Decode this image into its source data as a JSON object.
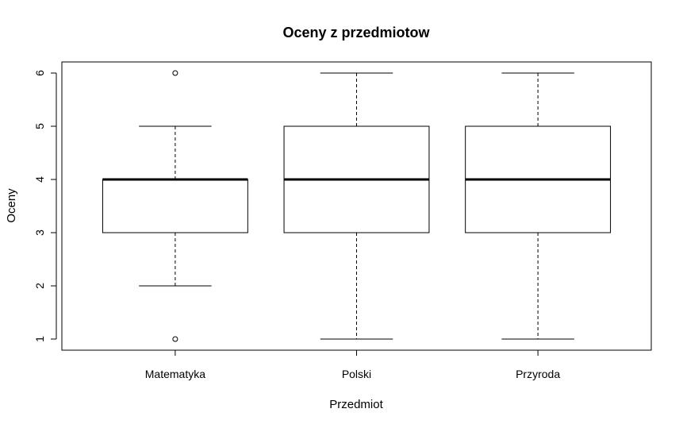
{
  "chart_data": {
    "type": "boxplot",
    "title": "Oceny z przedmiotow",
    "xlabel": "Przedmiot",
    "ylabel": "Oceny",
    "ylim": [
      0.8,
      6.2
    ],
    "yticks": [
      "1",
      "2",
      "3",
      "4",
      "5",
      "6"
    ],
    "grid": false,
    "legend": "none",
    "box_color": "#000000",
    "categories": [
      "Matematyka",
      "Polski",
      "Przyroda"
    ],
    "boxes": [
      {
        "category": "Matematyka",
        "whisker_low": 2,
        "q1": 3,
        "median": 4,
        "q3": 4,
        "whisker_high": 5,
        "outliers": [
          1,
          6
        ]
      },
      {
        "category": "Polski",
        "whisker_low": 1,
        "q1": 3,
        "median": 4,
        "q3": 5,
        "whisker_high": 6,
        "outliers": []
      },
      {
        "category": "Przyroda",
        "whisker_low": 1,
        "q1": 3,
        "median": 4,
        "q3": 5,
        "whisker_high": 6,
        "outliers": []
      }
    ]
  }
}
